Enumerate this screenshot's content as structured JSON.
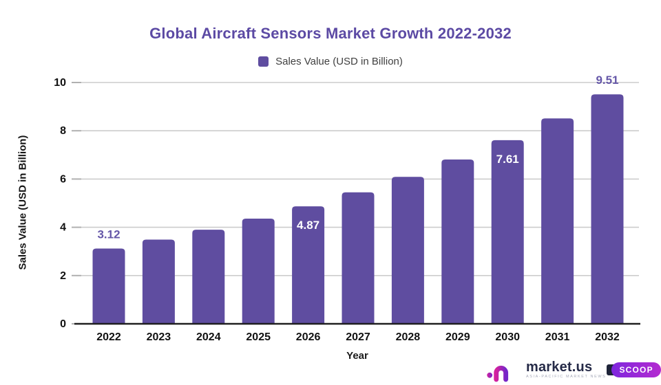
{
  "title": "Global Aircraft Sensors Market Growth 2022-2032",
  "legend": {
    "label": "Sales Value (USD in Billion)",
    "swatch_color": "#5f4da0"
  },
  "chart_data": {
    "type": "bar",
    "title": "Global Aircraft Sensors Market Growth 2022-2032",
    "categories": [
      "2022",
      "2023",
      "2024",
      "2025",
      "2026",
      "2027",
      "2028",
      "2029",
      "2030",
      "2031",
      "2032"
    ],
    "values": [
      3.12,
      3.49,
      3.9,
      4.36,
      4.87,
      5.45,
      6.09,
      6.81,
      7.61,
      8.51,
      9.51
    ],
    "series_name": "Sales Value (USD in Billion)",
    "xlabel": "Year",
    "ylabel": "Sales Value (USD in Billion)",
    "ylim": [
      0,
      10
    ],
    "ytick_step": 2,
    "grid": "horizontal",
    "legend_position": "top",
    "bar_color": "#5f4da0",
    "data_labels": [
      {
        "index": 0,
        "text": "3.12",
        "placement": "above"
      },
      {
        "index": 4,
        "text": "4.87",
        "placement": "inside"
      },
      {
        "index": 8,
        "text": "7.61",
        "placement": "inside"
      },
      {
        "index": 10,
        "text": "9.51",
        "placement": "above"
      }
    ],
    "colors": {
      "above_label": "#6557a8",
      "inside_label": "#ffffff",
      "gridline": "#cccccc",
      "axis": "#1f1f1f",
      "tick_text": "#111111"
    }
  },
  "footer": {
    "brand": "market.us",
    "tagline": "ASIA-PACIFIC MARKET NEWS",
    "badge": "SCOOP"
  }
}
